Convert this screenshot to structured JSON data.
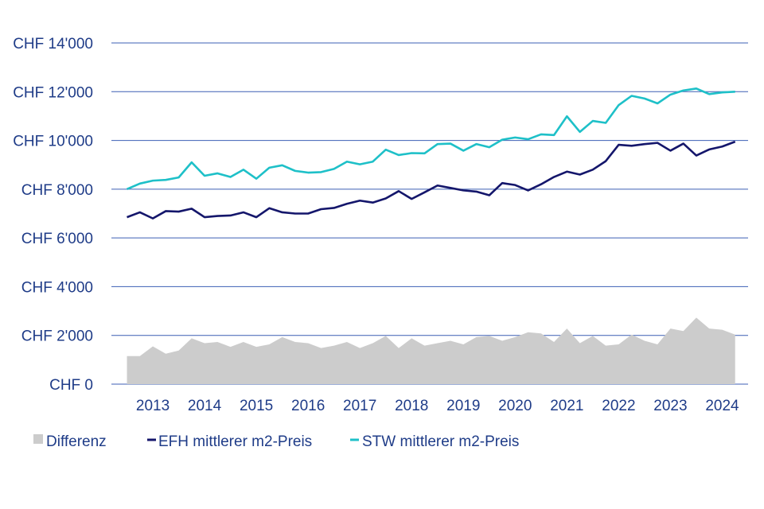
{
  "chart_data": {
    "type": "line",
    "x": [
      2012.5,
      2012.75,
      2013.0,
      2013.25,
      2013.5,
      2013.75,
      2014.0,
      2014.25,
      2014.5,
      2014.75,
      2015.0,
      2015.25,
      2015.5,
      2015.75,
      2016.0,
      2016.25,
      2016.5,
      2016.75,
      2017.0,
      2017.25,
      2017.5,
      2017.75,
      2018.0,
      2018.25,
      2018.5,
      2018.75,
      2019.0,
      2019.25,
      2019.5,
      2019.75,
      2020.0,
      2020.25,
      2020.5,
      2020.75,
      2021.0,
      2021.25,
      2021.5,
      2021.75,
      2022.0,
      2022.25,
      2022.5,
      2022.75,
      2023.0,
      2023.25,
      2023.5,
      2023.75,
      2024.0,
      2024.25
    ],
    "x_tick_labels": [
      "2013",
      "2014",
      "2015",
      "2016",
      "2017",
      "2018",
      "2019",
      "2020",
      "2021",
      "2022",
      "2023",
      "2024"
    ],
    "y_tick_labels": [
      "CHF 0",
      "CHF 2'000",
      "CHF 4'000",
      "CHF 6'000",
      "CHF 8'000",
      "CHF 10'000",
      "CHF 12'000",
      "CHF 14'000"
    ],
    "ylim": [
      0,
      14000
    ],
    "grid": true,
    "legend_position": "bottom",
    "series": [
      {
        "name": "Differenz",
        "kind": "area",
        "color": "#cccccc",
        "values": [
          1150,
          1150,
          1550,
          1250,
          1380,
          1880,
          1680,
          1730,
          1530,
          1730,
          1530,
          1630,
          1930,
          1730,
          1680,
          1480,
          1580,
          1730,
          1480,
          1680,
          1980,
          1480,
          1880,
          1580,
          1680,
          1780,
          1630,
          1930,
          1980,
          1780,
          1930,
          2130,
          2080,
          1730,
          2280,
          1680,
          1980,
          1580,
          1630,
          2030,
          1780,
          1630,
          2280,
          2180,
          2730,
          2280,
          2230,
          2030
        ]
      },
      {
        "name": "EFH mittlerer m2-Preis",
        "kind": "line",
        "color": "#14166b",
        "values": [
          6850,
          7050,
          6800,
          7100,
          7080,
          7200,
          6850,
          6900,
          6920,
          7050,
          6850,
          7220,
          7050,
          7000,
          7000,
          7180,
          7230,
          7400,
          7530,
          7450,
          7620,
          7920,
          7600,
          7870,
          8150,
          8050,
          7950,
          7900,
          7750,
          8250,
          8170,
          7950,
          8200,
          8500,
          8720,
          8600,
          8800,
          9150,
          9820,
          9780,
          9850,
          9900,
          9580,
          9870,
          9380,
          9630,
          9750,
          9950
        ]
      },
      {
        "name": "STW mittlerer m2-Preis",
        "kind": "line",
        "color": "#1ec0c8",
        "values": [
          8000,
          8230,
          8350,
          8380,
          8480,
          9100,
          8550,
          8650,
          8500,
          8800,
          8430,
          8880,
          8980,
          8750,
          8680,
          8700,
          8830,
          9130,
          9020,
          9130,
          9620,
          9400,
          9480,
          9470,
          9850,
          9870,
          9580,
          9850,
          9720,
          10030,
          10120,
          10050,
          10250,
          10220,
          10990,
          10350,
          10800,
          10720,
          11450,
          11830,
          11720,
          11520,
          11880,
          12050,
          12130,
          11900,
          11970,
          12000
        ]
      }
    ]
  }
}
